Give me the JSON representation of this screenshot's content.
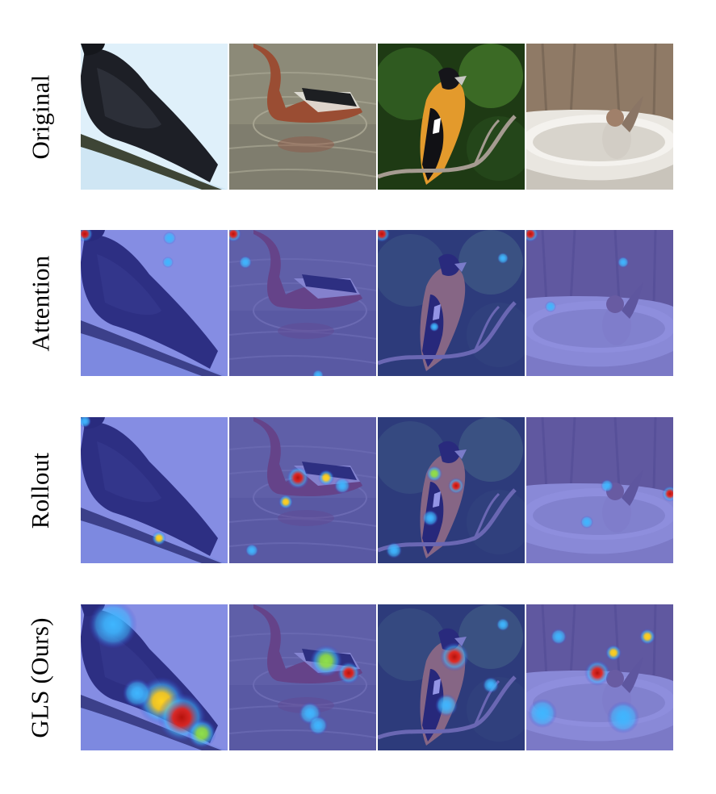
{
  "figure": {
    "rows": [
      {
        "label": "Original",
        "method": "original"
      },
      {
        "label": "Attention",
        "method": "attention"
      },
      {
        "label": "Rollout",
        "method": "rollout"
      },
      {
        "label": "GLS (Ours)",
        "method": "gls"
      }
    ],
    "columns": [
      {
        "subject": "black crow on branch"
      },
      {
        "subject": "duck swimming in water"
      },
      {
        "subject": "black-headed grosbeak on twig"
      },
      {
        "subject": "sparrow in birdbath"
      }
    ],
    "colors": {
      "overlay_blue": "#3a3ccf",
      "heat_low": "#3fb6ff",
      "heat_mid": "#8fe04a",
      "heat_high": "#ffd21f",
      "heat_peak": "#e8251a"
    }
  }
}
